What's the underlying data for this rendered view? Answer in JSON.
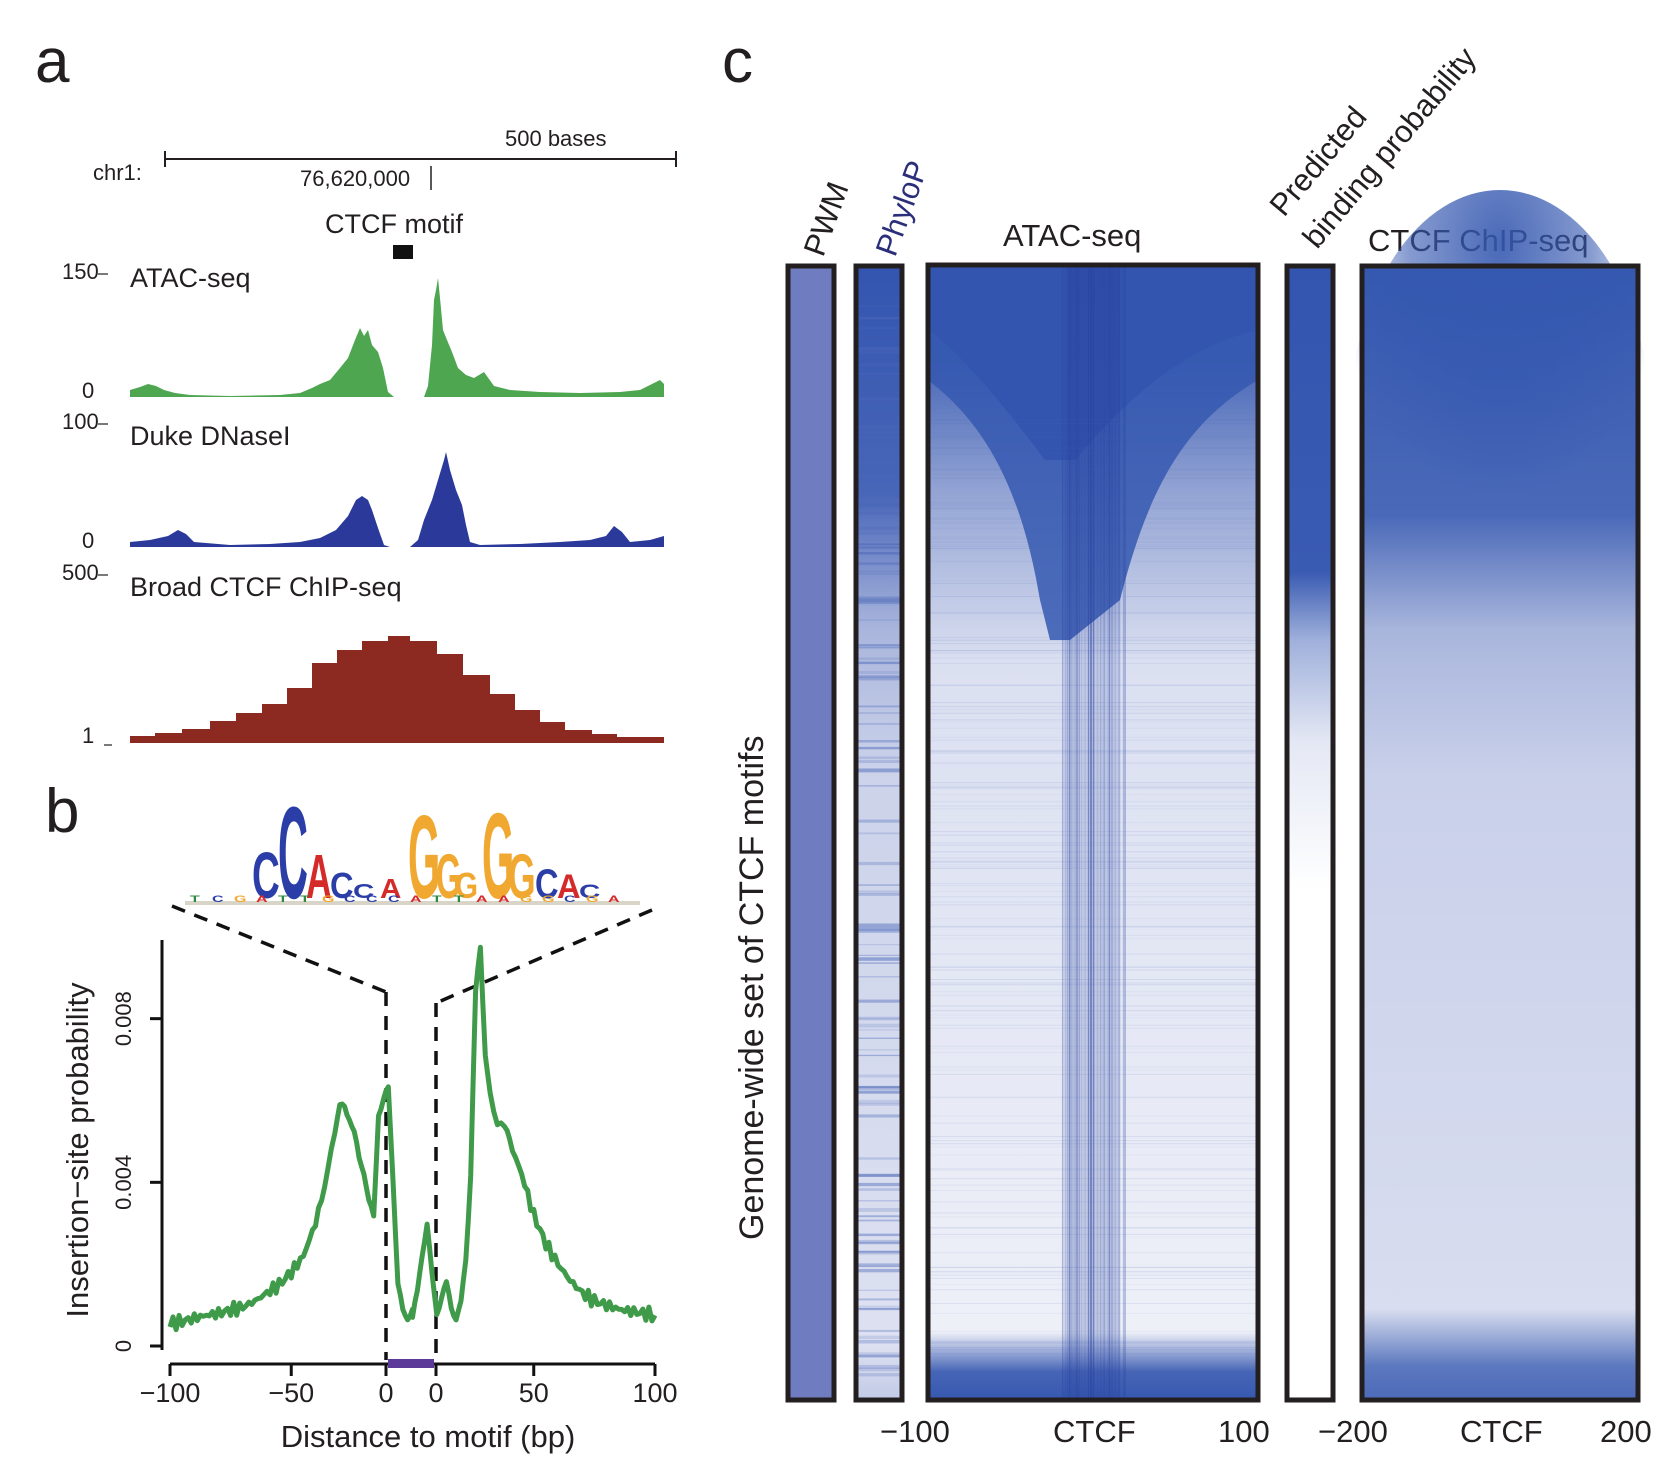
{
  "panel_a": {
    "label": "a",
    "scale_label": "500 bases",
    "chrom_label": "chr1:",
    "position_label": "76,620,000",
    "motif_label": "CTCF motif",
    "tracks": [
      {
        "name": "ATAC-seq",
        "max_label": "150",
        "min_label": "0",
        "color": "#4ea651"
      },
      {
        "name": "Duke DNaseI",
        "max_label": "100",
        "min_label": "0",
        "color": "#2b3a9a"
      },
      {
        "name": "Broad CTCF ChIP-seq",
        "max_label": "500",
        "min_label": "1",
        "color": "#8c2a22"
      }
    ]
  },
  "panel_b": {
    "label": "b",
    "motif_logo_letters": [
      "C",
      "C",
      "A",
      "C",
      "C",
      "A",
      "G",
      "G",
      "G",
      "G",
      "G",
      "C",
      "A",
      "C"
    ],
    "motif_letter_colors": {
      "A": "#d42a2a",
      "C": "#2b3ea8",
      "G": "#f0a830",
      "T": "#2b8a3e"
    },
    "chart_data": {
      "type": "line",
      "xlabel": "Distance to motif (bp)",
      "ylabel": "Insertion−site probability",
      "xlim": [
        -100,
        100
      ],
      "ylim": [
        0,
        0.0098
      ],
      "xticks": [
        "−100",
        "−50",
        "0",
        "0",
        "50",
        "100"
      ],
      "yticks": [
        "0",
        "0.004",
        "0.008"
      ],
      "line_color": "#3f9b49",
      "motif_bar_color": "#5b3a99",
      "series": [
        {
          "x": [
            -100,
            -95,
            -90,
            -85,
            -80,
            -75,
            -70,
            -65,
            -60,
            -55,
            -50,
            -45,
            -40,
            -35,
            -32,
            -30,
            -28,
            -26,
            -24,
            -22,
            -20,
            -18,
            -16,
            -14,
            -12,
            -10,
            -8,
            -6,
            -4,
            -2,
            0,
            0,
            2,
            4,
            6,
            8,
            10,
            12,
            14,
            16,
            18,
            20,
            22,
            24,
            26,
            28,
            30,
            32,
            35,
            38,
            40,
            45,
            50,
            55,
            60,
            65,
            70,
            75,
            80,
            85,
            90,
            95,
            100
          ],
          "y": [
            0.00055,
            0.0006,
            0.00068,
            0.00075,
            0.0008,
            0.00088,
            0.00095,
            0.0011,
            0.0013,
            0.0015,
            0.0018,
            0.0022,
            0.003,
            0.0042,
            0.0052,
            0.0058,
            0.0059,
            0.0057,
            0.0052,
            0.0045,
            0.0042,
            0.0035,
            0.0032,
            0.0058,
            0.006,
            0.0062,
            0.004,
            0.0015,
            0.0009,
            0.0008,
            0.0009,
            0.0007,
            0.0012,
            0.0022,
            0.003,
            0.0018,
            0.0009,
            0.0012,
            0.0014,
            0.0009,
            0.0007,
            0.0011,
            0.0022,
            0.0042,
            0.0085,
            0.0097,
            0.0072,
            0.0062,
            0.0055,
            0.0052,
            0.005,
            0.0042,
            0.0032,
            0.0025,
            0.002,
            0.0016,
            0.0013,
            0.0011,
            0.001,
            0.0009,
            0.00085,
            0.0008,
            0.00075
          ]
        }
      ]
    }
  },
  "panel_c": {
    "label": "c",
    "row_axis_label": "Genome-wide set of CTCF motifs",
    "columns": [
      {
        "title": "PWM",
        "title_color": "#231f20"
      },
      {
        "title": "PhyloP",
        "title_color": "#2b2f7a"
      },
      {
        "title": "ATAC-seq",
        "title_color": "#231f20",
        "xticks": [
          "−100",
          "CTCF",
          "100"
        ]
      },
      {
        "title_lines": [
          "Predicted",
          "binding probability"
        ],
        "title_color": "#231f20"
      },
      {
        "title": "CTCF ChIP-seq",
        "title_color": "#231f20",
        "xticks": [
          "−200",
          "CTCF",
          "200"
        ]
      }
    ],
    "heat_color": "#3653ad"
  }
}
